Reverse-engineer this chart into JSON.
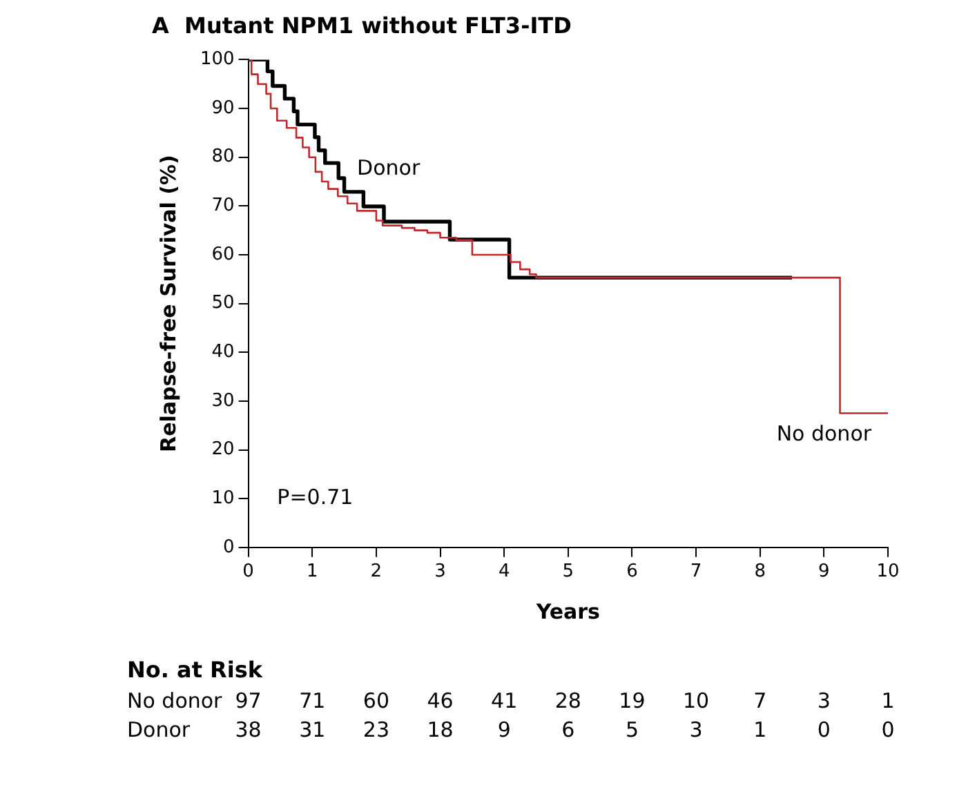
{
  "chart_data": {
    "type": "step",
    "title": "A  Mutant NPM1 without FLT3-ITD",
    "xlabel": "Years",
    "ylabel": "Relapse-free Survival (%)",
    "xlim": [
      0,
      10
    ],
    "xticks": [
      0,
      1,
      2,
      3,
      4,
      5,
      6,
      7,
      8,
      9,
      10
    ],
    "ylim": [
      0,
      100
    ],
    "yticks": [
      0,
      10,
      20,
      30,
      40,
      50,
      60,
      70,
      80,
      90,
      100
    ],
    "grid": false,
    "legend": false,
    "series": [
      {
        "name": "No donor",
        "color": "#c0282d",
        "x": [
          0,
          0.05,
          0.15,
          0.28,
          0.35,
          0.45,
          0.6,
          0.75,
          0.85,
          0.95,
          1.05,
          1.15,
          1.25,
          1.4,
          1.55,
          1.7,
          2.0,
          2.1,
          2.4,
          2.6,
          2.8,
          3.0,
          3.25,
          3.5,
          4.1,
          4.25,
          4.4,
          4.5,
          9.25,
          10
        ],
        "values": [
          100,
          97,
          95,
          93,
          90,
          87.5,
          86,
          84,
          82,
          80,
          77,
          75,
          73.5,
          72,
          70.5,
          69,
          67,
          66,
          65.5,
          65,
          64.5,
          63.5,
          63,
          60,
          58.5,
          57,
          56,
          55.3,
          27.5,
          27.5
        ]
      },
      {
        "name": "Donor",
        "color": "#000000",
        "x": [
          0,
          0.3,
          0.38,
          0.57,
          0.71,
          0.77,
          1.04,
          1.1,
          1.2,
          1.41,
          1.5,
          1.8,
          2.12,
          3.15,
          4.08,
          8.5
        ],
        "values": [
          100,
          97.6,
          94.6,
          92,
          89.4,
          86.7,
          84.1,
          81.4,
          78.8,
          75.7,
          72.9,
          69.9,
          66.8,
          63.1,
          55.3,
          55.3
        ]
      }
    ],
    "annotations": [
      "P=0.71",
      "No. at Risk",
      "97 71 60 46 41 28 19 10 7 3 1",
      "38 31 23 18 9 6 5 3 1 0 0"
    ]
  }
}
